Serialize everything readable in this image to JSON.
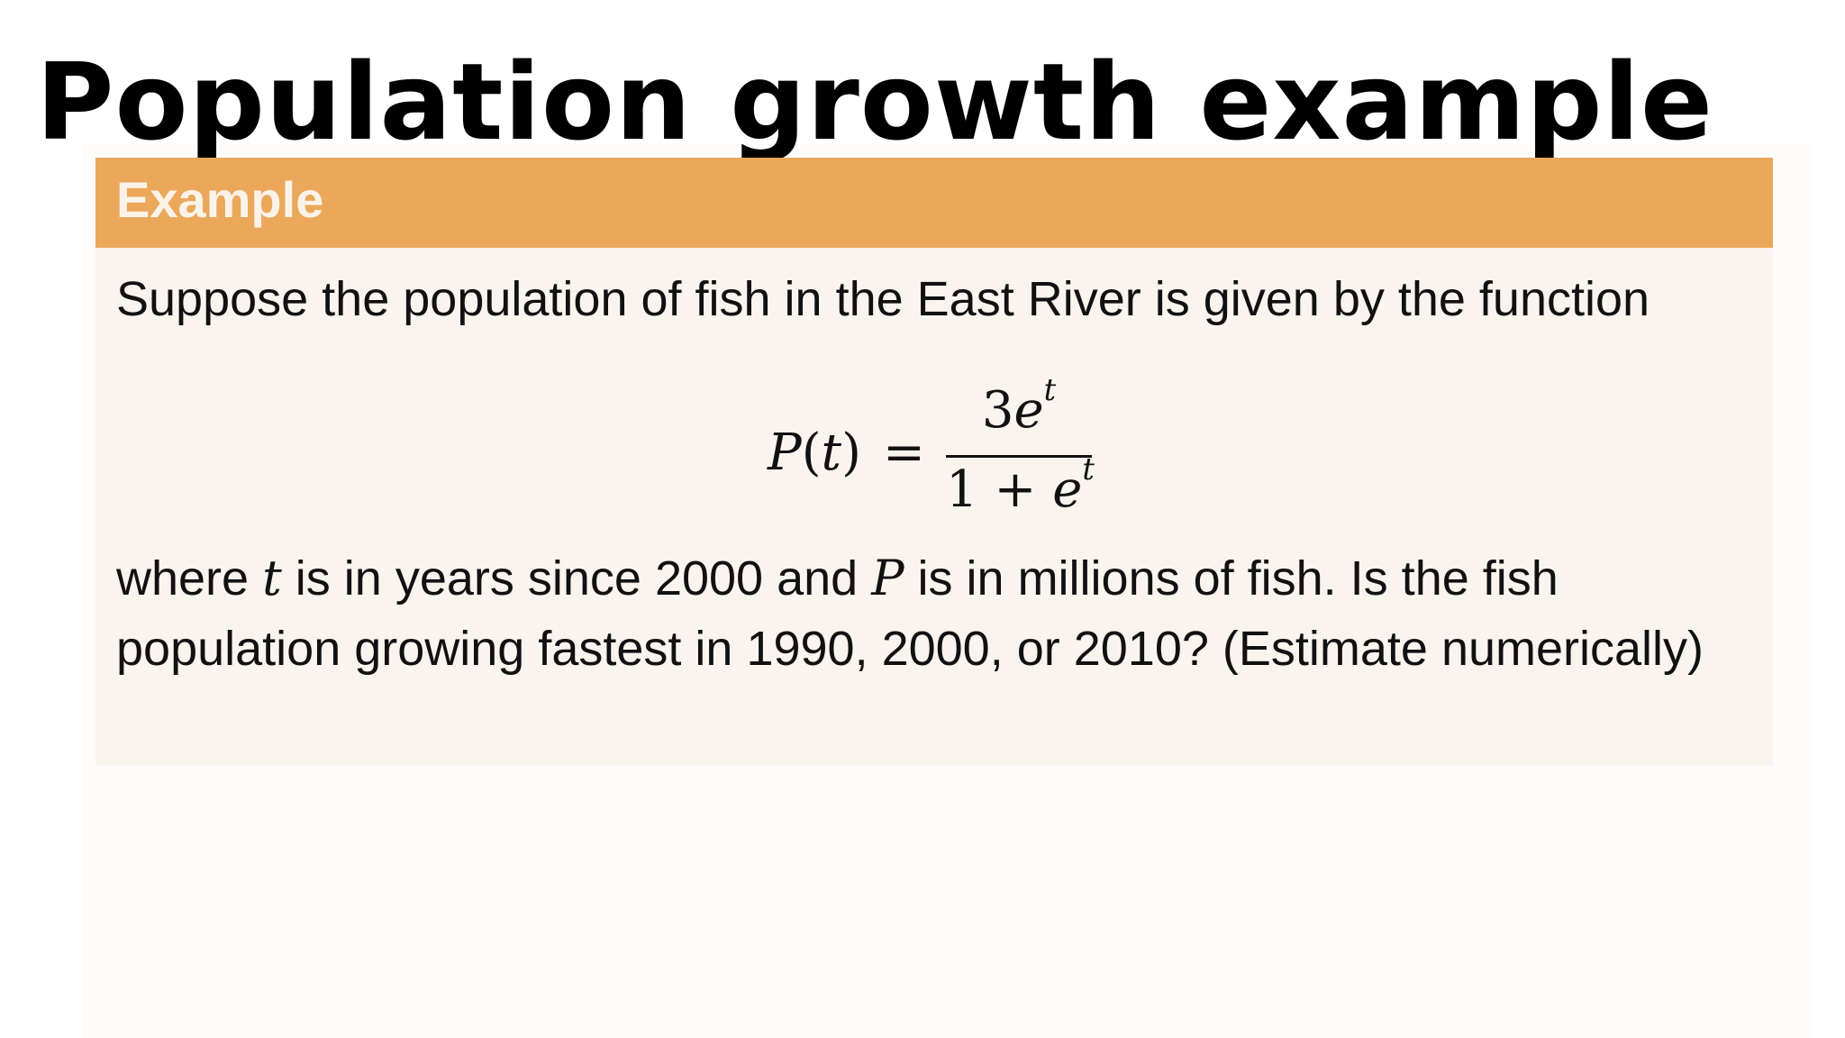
{
  "slide": {
    "title": "Population growth example"
  },
  "example": {
    "header_label": "Example",
    "intro_text": "Suppose the population of fish in the East River is given by the function",
    "equation": {
      "lhs_function": "P",
      "lhs_variable": "t",
      "equals": "=",
      "numerator_coefficient": "3",
      "numerator_base": "e",
      "numerator_exponent": "t",
      "denominator_constant": "1",
      "denominator_operator": "+",
      "denominator_base": "e",
      "denominator_exponent": "t"
    },
    "question": {
      "part1": "where ",
      "var_t": "t",
      "part2": " is in years since 2000 and ",
      "var_P": "P",
      "part3": " is in millions of fish. Is the fish population growing fastest in 1990, 2000, or 2010? (Estimate numerically)"
    }
  },
  "colors": {
    "header_background": "#eba85a",
    "header_text": "#fbf3ea",
    "body_background": "#f9f4ee",
    "title_text": "#000000"
  }
}
